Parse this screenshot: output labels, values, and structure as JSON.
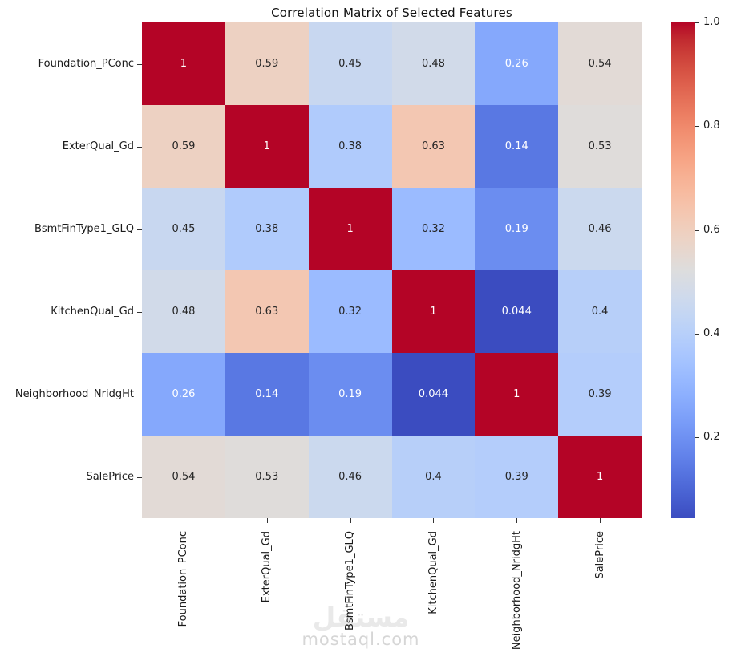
{
  "title": "Correlation Matrix of Selected Features",
  "chart_data": {
    "type": "heatmap",
    "title": "Correlation Matrix of Selected Features",
    "categories": [
      "Foundation_PConc",
      "ExterQual_Gd",
      "BsmtFinType1_GLQ",
      "KitchenQual_Gd",
      "Neighborhood_NridgHt",
      "SalePrice"
    ],
    "matrix": [
      [
        1,
        0.59,
        0.45,
        0.48,
        0.26,
        0.54
      ],
      [
        0.59,
        1,
        0.38,
        0.63,
        0.14,
        0.53
      ],
      [
        0.45,
        0.38,
        1,
        0.32,
        0.19,
        0.46
      ],
      [
        0.48,
        0.63,
        0.32,
        1,
        0.044,
        0.4
      ],
      [
        0.26,
        0.14,
        0.19,
        0.044,
        1,
        0.39
      ],
      [
        0.54,
        0.53,
        0.46,
        0.4,
        0.39,
        1
      ]
    ],
    "colormap": "coolwarm",
    "vmin": 0.044,
    "vmax": 1.0,
    "annotations": true,
    "grid": false,
    "legend_position": "right",
    "colorbar_ticks": [
      1.0,
      0.8,
      0.6,
      0.4,
      0.2
    ],
    "colorbar_tick_labels": [
      "1.0",
      "0.8",
      "0.6",
      "0.4",
      "0.2"
    ]
  },
  "colors": {
    "annotation_dark": "#262626",
    "annotation_light": "#ffffff",
    "tick_text": "#1a1a1a",
    "max_color": "#b40426",
    "min_color": "#3b4cc0"
  },
  "watermark": {
    "logo": "مستقل",
    "site": "mostaql.com"
  }
}
